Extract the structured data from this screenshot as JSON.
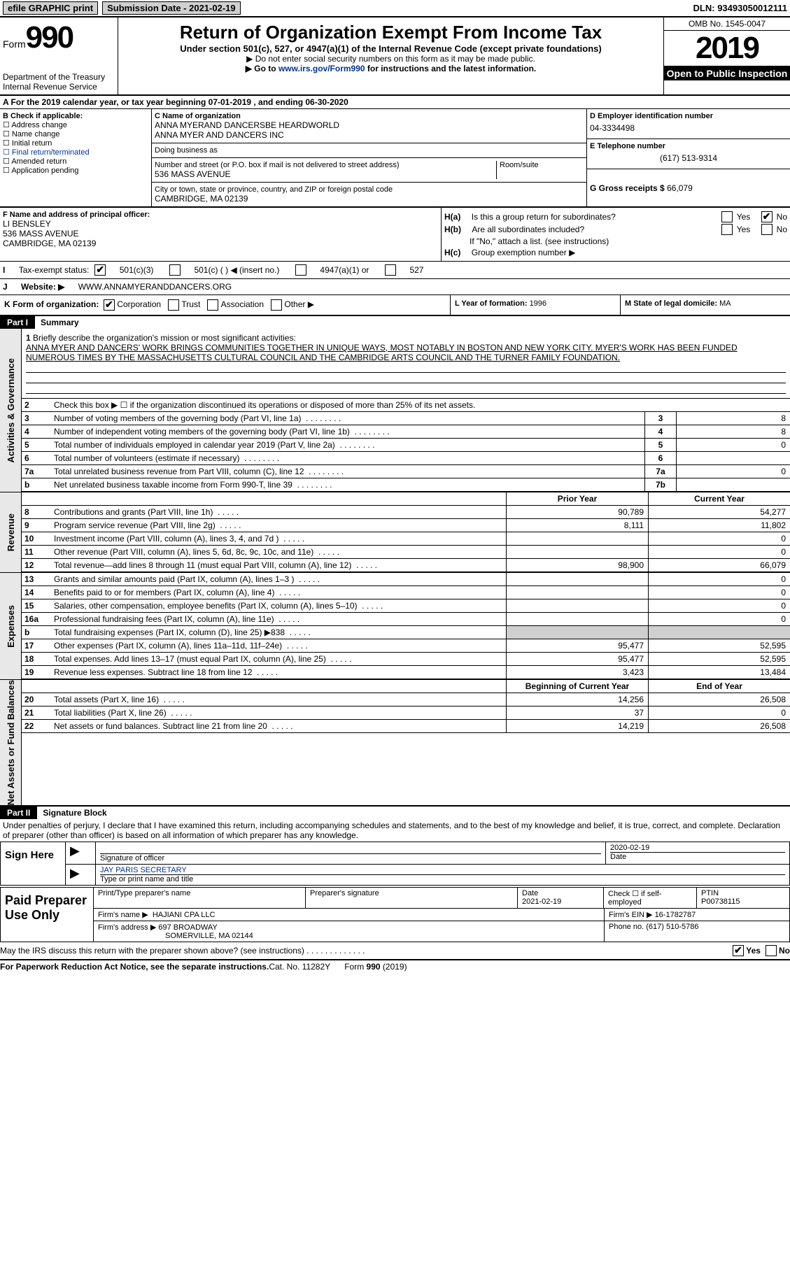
{
  "topbar": {
    "btn1": "efile GRAPHIC print",
    "btn2_label": "Submission Date - ",
    "btn2_date": "2021-02-19",
    "dln_label": "DLN: ",
    "dln": "93493050012111"
  },
  "header": {
    "form_word": "Form",
    "form_no": "990",
    "dept": "Department of the Treasury\nInternal Revenue Service",
    "title": "Return of Organization Exempt From Income Tax",
    "sub": "Under section 501(c), 527, or 4947(a)(1) of the Internal Revenue Code (except private foundations)",
    "note1": "▶ Do not enter social security numbers on this form as it may be made public.",
    "note2_pre": "▶ Go to ",
    "note2_link": "www.irs.gov/Form990",
    "note2_post": " for instructions and the latest information.",
    "omb": "OMB No. 1545-0047",
    "year": "2019",
    "inspect": "Open to Public Inspection"
  },
  "A": {
    "text": "A For the 2019 calendar year, or tax year beginning 07-01-2019    , and ending 06-30-2020"
  },
  "B": {
    "hdr": "B Check if applicable:",
    "o1": "Address change",
    "o2": "Name change",
    "o3": "Initial return",
    "o4": "Final return/terminated",
    "o5": "Amended return",
    "o6": "Application pending"
  },
  "C": {
    "c_label": "C Name of organization",
    "name": "ANNA MYERAND DANCERSBE HEARDWORLD\nANNA MYER AND DANCERS INC",
    "dba_label": "Doing business as",
    "addr_label": "Number and street (or P.O. box if mail is not delivered to street address)",
    "room": "Room/suite",
    "addr": "536 MASS AVENUE",
    "city_label": "City or town, state or province, country, and ZIP or foreign postal code",
    "city": "CAMBRIDGE, MA  02139"
  },
  "D": {
    "ein_label": "D Employer identification number",
    "ein": "04-3334498",
    "tel_label": "E Telephone number",
    "tel": "(617) 513-9314",
    "g_label": "G Gross receipts $",
    "g": "66,079"
  },
  "F": {
    "label": "F  Name and address of principal officer:",
    "name": "LI BENSLEY",
    "addr": "536 MASS AVENUE",
    "city": "CAMBRIDGE, MA  02139"
  },
  "H": {
    "a": "Is this a group return for subordinates?",
    "yes": "Yes",
    "no": "No",
    "b": "Are all subordinates included?",
    "bnote": "If \"No,\" attach a list. (see instructions)",
    "c": "Group exemption number ▶"
  },
  "I": {
    "label": "Tax-exempt status:",
    "o1": "501(c)(3)",
    "o2": "501(c) (  ) ◀ (insert no.)",
    "o3": "4947(a)(1) or",
    "o4": "527"
  },
  "J": {
    "label": "Website: ▶",
    "val": "WWW.ANNAMYERANDDANCERS.ORG"
  },
  "K": {
    "label": "K Form of organization:",
    "o1": "Corporation",
    "o2": "Trust",
    "o3": "Association",
    "o4": "Other ▶"
  },
  "L": {
    "label": "L Year of formation: ",
    "val": "1996"
  },
  "M": {
    "label": "M State of legal domicile: ",
    "val": "MA"
  },
  "partI": {
    "pt": "Part I",
    "name": "Summary"
  },
  "sectionLabels": {
    "ag": "Activities & Governance",
    "rev": "Revenue",
    "exp": "Expenses",
    "na": "Net Assets or Fund Balances"
  },
  "p1": {
    "l1": "Briefly describe the organization's mission or most significant activities:",
    "mission": "ANNA MYER AND DANCERS' WORK BRINGS COMMUNITIES TOGETHER IN UNIQUE WAYS, MOST NOTABLY IN BOSTON AND NEW YORK CITY. MYER'S WORK HAS BEEN FUNDED NUMEROUS TIMES BY THE MASSACHUSETTS CULTURAL COUNCIL AND THE CAMBRIDGE ARTS COUNCIL AND THE TURNER FAMILY FOUNDATION.",
    "l2": "Check this box ▶ ☐  if the organization discontinued its operations or disposed of more than 25% of its net assets.",
    "lines": [
      {
        "n": "3",
        "d": "Number of voting members of the governing body (Part VI, line 1a)",
        "box": "3",
        "v": "8"
      },
      {
        "n": "4",
        "d": "Number of independent voting members of the governing body (Part VI, line 1b)",
        "box": "4",
        "v": "8"
      },
      {
        "n": "5",
        "d": "Total number of individuals employed in calendar year 2019 (Part V, line 2a)",
        "box": "5",
        "v": "0"
      },
      {
        "n": "6",
        "d": "Total number of volunteers (estimate if necessary)",
        "box": "6",
        "v": ""
      },
      {
        "n": "7a",
        "d": "Total unrelated business revenue from Part VIII, column (C), line 12",
        "box": "7a",
        "v": "0"
      },
      {
        "n": "b",
        "d": "Net unrelated business taxable income from Form 990-T, line 39",
        "box": "7b",
        "v": ""
      }
    ],
    "colhdr1": "Prior Year",
    "colhdr2": "Current Year",
    "rev": [
      {
        "n": "8",
        "d": "Contributions and grants (Part VIII, line 1h)",
        "c1": "90,789",
        "c2": "54,277"
      },
      {
        "n": "9",
        "d": "Program service revenue (Part VIII, line 2g)",
        "c1": "8,111",
        "c2": "11,802"
      },
      {
        "n": "10",
        "d": "Investment income (Part VIII, column (A), lines 3, 4, and 7d )",
        "c1": "",
        "c2": "0"
      },
      {
        "n": "11",
        "d": "Other revenue (Part VIII, column (A), lines 5, 6d, 8c, 9c, 10c, and 11e)",
        "c1": "",
        "c2": "0"
      },
      {
        "n": "12",
        "d": "Total revenue—add lines 8 through 11 (must equal Part VIII, column (A), line 12)",
        "c1": "98,900",
        "c2": "66,079"
      }
    ],
    "exp": [
      {
        "n": "13",
        "d": "Grants and similar amounts paid (Part IX, column (A), lines 1–3 )",
        "c1": "",
        "c2": "0"
      },
      {
        "n": "14",
        "d": "Benefits paid to or for members (Part IX, column (A), line 4)",
        "c1": "",
        "c2": "0"
      },
      {
        "n": "15",
        "d": "Salaries, other compensation, employee benefits (Part IX, column (A), lines 5–10)",
        "c1": "",
        "c2": "0"
      },
      {
        "n": "16a",
        "d": "Professional fundraising fees (Part IX, column (A), line 11e)",
        "c1": "",
        "c2": "0"
      },
      {
        "n": "b",
        "d": "Total fundraising expenses (Part IX, column (D), line 25) ▶838",
        "c1": "grey",
        "c2": "grey"
      },
      {
        "n": "17",
        "d": "Other expenses (Part IX, column (A), lines 11a–11d, 11f–24e)",
        "c1": "95,477",
        "c2": "52,595"
      },
      {
        "n": "18",
        "d": "Total expenses. Add lines 13–17 (must equal Part IX, column (A), line 25)",
        "c1": "95,477",
        "c2": "52,595"
      },
      {
        "n": "19",
        "d": "Revenue less expenses. Subtract line 18 from line 12",
        "c1": "3,423",
        "c2": "13,484"
      }
    ],
    "nahdr1": "Beginning of Current Year",
    "nahdr2": "End of Year",
    "na": [
      {
        "n": "20",
        "d": "Total assets (Part X, line 16)",
        "c1": "14,256",
        "c2": "26,508"
      },
      {
        "n": "21",
        "d": "Total liabilities (Part X, line 26)",
        "c1": "37",
        "c2": "0"
      },
      {
        "n": "22",
        "d": "Net assets or fund balances. Subtract line 21 from line 20",
        "c1": "14,219",
        "c2": "26,508"
      }
    ]
  },
  "partII": {
    "pt": "Part II",
    "name": "Signature Block"
  },
  "declare": "Under penalties of perjury, I declare that I have examined this return, including accompanying schedules and statements, and to the best of my knowledge and belief, it is true, correct, and complete. Declaration of preparer (other than officer) is based on all information of which preparer has any knowledge.",
  "sign": {
    "L": "Sign Here",
    "sigof": "Signature of officer",
    "date": "Date",
    "dateval": "2020-02-19",
    "name": "JAY PARIS  SECRETARY",
    "namelabel": "Type or print name and title"
  },
  "prep": {
    "L": "Paid Preparer Use Only",
    "h1": "Print/Type preparer's name",
    "h2": "Preparer's signature",
    "h3": "Date",
    "h3v": "2021-02-19",
    "h4": "Check ☐ if self-employed",
    "h5": "PTIN",
    "h5v": "P00738115",
    "firm_label": "Firm's name  ▶",
    "firm": "HAJIANI CPA LLC",
    "ein_label": "Firm's EIN ▶",
    "ein": "16-1782787",
    "addr_label": "Firm's address ▶",
    "addr": "697 BROADWAY",
    "city": "SOMERVILLE, MA  02144",
    "phone_label": "Phone no.",
    "phone": "(617) 510-5786"
  },
  "footer": {
    "discuss": "May the IRS discuss this return with the preparer shown above? (see instructions)",
    "yes": "Yes",
    "no": "No",
    "paperwork": "For Paperwork Reduction Act Notice, see the separate instructions.",
    "cat": "Cat. No. 11282Y",
    "form": "Form 990 (2019)"
  }
}
